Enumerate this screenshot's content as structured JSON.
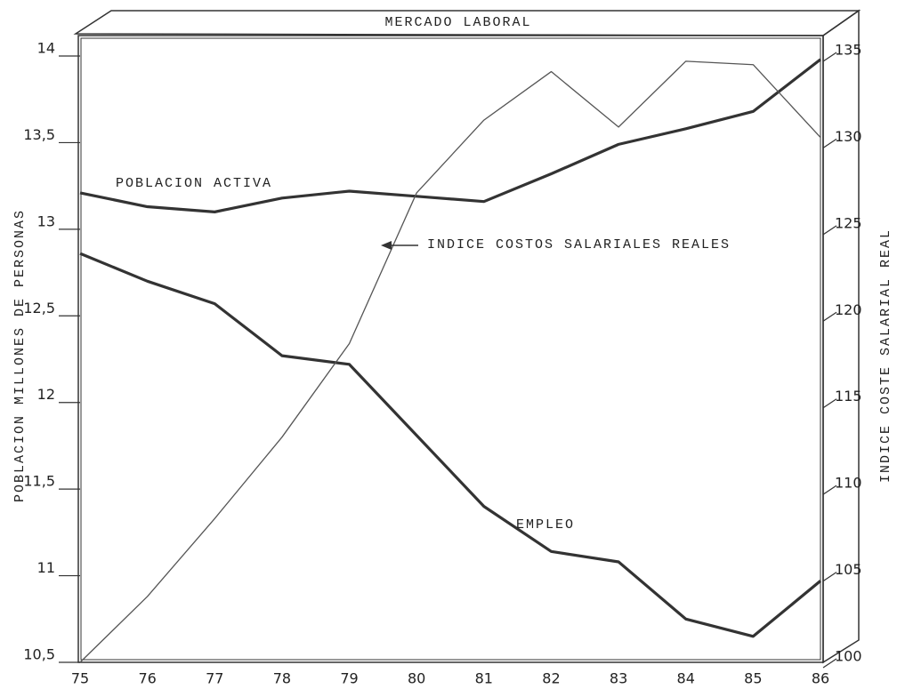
{
  "chart_data": {
    "type": "line",
    "title": "MERCADO LABORAL",
    "ylabel": "POBLACION MILLONES DE PERSONAS",
    "y2label": "INDICE COSTE SALARIAL REAL",
    "categories": [
      "75",
      "76",
      "77",
      "78",
      "79",
      "80",
      "81",
      "82",
      "83",
      "84",
      "85",
      "86"
    ],
    "series": [
      {
        "name": "POBLACION ACTIVA",
        "color": "#333333",
        "values": [
          13.21,
          13.13,
          13.1,
          13.18,
          13.22,
          13.19,
          13.16,
          13.32,
          13.49,
          13.58,
          13.68,
          13.98
        ]
      },
      {
        "name": "EMPLEO",
        "color": "#333333",
        "values": [
          12.86,
          12.7,
          12.57,
          12.27,
          12.22,
          11.81,
          11.4,
          11.14,
          11.08,
          10.75,
          10.65,
          10.97
        ]
      },
      {
        "name": "INDICE COSTOS SALARIALES REALES",
        "color": "#555555",
        "axis": "y2",
        "values": [
          100,
          103.8,
          108.3,
          113,
          118.4,
          127.1,
          131.3,
          134.1,
          130.9,
          134.7,
          134.5,
          130.3
        ]
      }
    ],
    "ylim": [
      10.5,
      14
    ],
    "yticks": [
      {
        "value": 10.5,
        "label": "10,5"
      },
      11,
      {
        "value": 11.5,
        "label": "11,5"
      },
      12,
      {
        "value": 12.5,
        "label": "12,5"
      },
      13,
      {
        "value": 13.5,
        "label": "13,5"
      },
      14
    ],
    "y2lim": [
      100,
      135
    ],
    "y2ticks": [
      100,
      105,
      110,
      115,
      120,
      125,
      130,
      135
    ],
    "grid": false
  }
}
